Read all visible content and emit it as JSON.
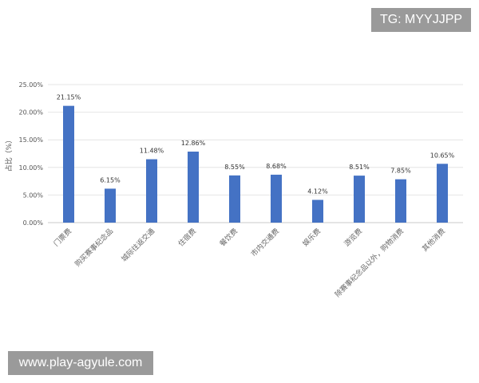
{
  "chart_data": {
    "type": "bar",
    "title": "",
    "xlabel": "",
    "ylabel": "占比（%）",
    "ylim": [
      0,
      25
    ],
    "yticks": [
      "0.00%",
      "5.00%",
      "10.00%",
      "15.00%",
      "20.00%",
      "25.00%"
    ],
    "grid": true,
    "bar_color": "#4472C4",
    "categories": [
      "门票费",
      "购买赛事纪念品",
      "城际往返交通",
      "住宿费",
      "餐饮费",
      "市内交通费",
      "娱乐费",
      "游览费",
      "除赛事纪念品以外，购物消费",
      "其他消费"
    ],
    "values": [
      21.15,
      6.15,
      11.48,
      12.86,
      8.55,
      8.68,
      4.12,
      8.51,
      7.85,
      10.65
    ],
    "data_labels": [
      "21.15%",
      "6.15%",
      "11.48%",
      "12.86%",
      "8.55%",
      "8.68%",
      "4.12%",
      "8.51%",
      "7.85%",
      "10.65%"
    ]
  },
  "watermarks": {
    "top": "TG: MYYJJPP",
    "bottom": "www.play-agyule.com"
  }
}
